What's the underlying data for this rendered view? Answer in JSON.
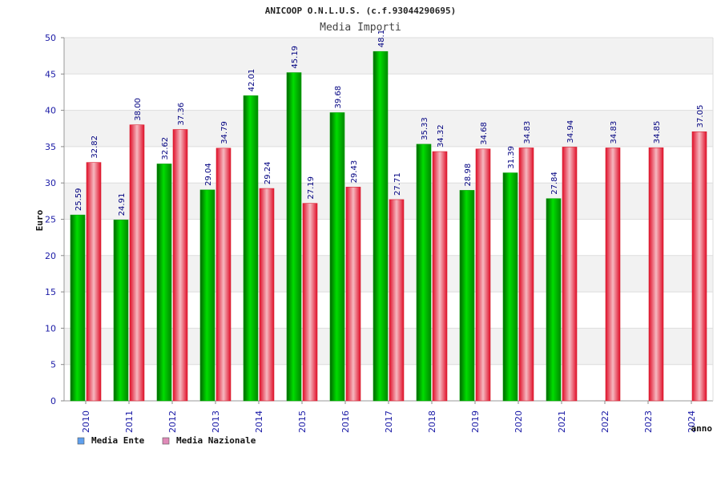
{
  "chart_data": {
    "type": "bar",
    "title": "ANICOOP O.N.L.U.S. (c.f.93044290695)",
    "subtitle": "Media Importi",
    "xlabel": "anno",
    "ylabel": "Euro",
    "ylim": [
      0,
      50
    ],
    "yticks": [
      0,
      5,
      10,
      15,
      20,
      25,
      30,
      35,
      40,
      45,
      50
    ],
    "grid": true,
    "legend_position": "bottom-left",
    "categories": [
      "2010",
      "2011",
      "2012",
      "2013",
      "2014",
      "2015",
      "2016",
      "2017",
      "2018",
      "2019",
      "2020",
      "2021",
      "2022",
      "2023",
      "2024"
    ],
    "series": [
      {
        "name": "Media Ente",
        "color": "#00b400",
        "legend_color": "#5fa0ee",
        "values": [
          25.59,
          24.91,
          32.62,
          29.04,
          42.01,
          45.19,
          39.68,
          48.1,
          35.33,
          28.98,
          31.39,
          27.84,
          null,
          null,
          null
        ],
        "labels": [
          "25.59",
          "24.91",
          "32.62",
          "29.04",
          "42.01",
          "45.19",
          "39.68",
          "48.1",
          "35.33",
          "28.98",
          "31.39",
          "27.84",
          "",
          "",
          ""
        ]
      },
      {
        "name": "Media Nazionale",
        "color": "#e8283c",
        "legend_color": "#e08ab8",
        "values": [
          32.82,
          38.0,
          37.36,
          34.79,
          29.24,
          27.19,
          29.43,
          27.71,
          34.32,
          34.68,
          34.83,
          34.94,
          34.83,
          34.85,
          37.05
        ],
        "labels": [
          "32.82",
          "38.00",
          "37.36",
          "34.79",
          "29.24",
          "27.19",
          "29.43",
          "27.71",
          "34.32",
          "34.68",
          "34.83",
          "34.94",
          "34.83",
          "34.85",
          "37.05"
        ]
      }
    ]
  }
}
